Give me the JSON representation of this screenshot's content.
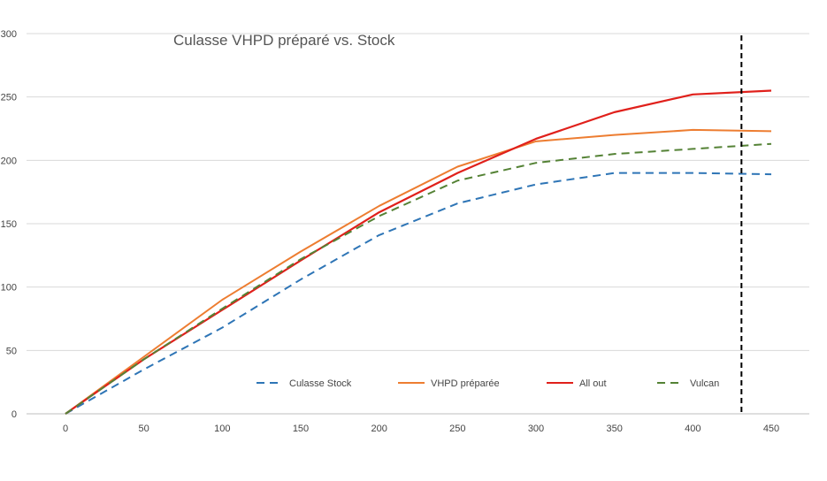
{
  "chart_data": {
    "type": "line",
    "title": "Culasse VHPD préparé vs. Stock",
    "xlabel": "",
    "ylabel": "",
    "x": [
      0,
      50,
      100,
      150,
      200,
      250,
      300,
      350,
      400,
      450
    ],
    "xlim": [
      0,
      450
    ],
    "ylim": [
      0,
      300
    ],
    "x_ticks": [
      "0",
      "50",
      "100",
      "150",
      "200",
      "250",
      "300",
      "350",
      "400",
      "450"
    ],
    "y_ticks": [
      "0",
      "50",
      "100",
      "150",
      "200",
      "250",
      "300"
    ],
    "grid": "horizontal",
    "legend_position": "bottom",
    "vertical_marker_x": 431,
    "series": [
      {
        "name": "Culasse Stock",
        "color": "#2E75B6",
        "style": "dashed",
        "values": [
          0,
          35,
          68,
          106,
          141,
          166,
          181,
          190,
          190,
          189
        ]
      },
      {
        "name": "VHPD préparée",
        "color": "#ED7D31",
        "style": "solid",
        "values": [
          0,
          45,
          90,
          128,
          164,
          195,
          215,
          220,
          224,
          223
        ]
      },
      {
        "name": "All out",
        "color": "#E0201B",
        "style": "solid",
        "values": [
          0,
          43,
          82,
          121,
          159,
          190,
          217,
          238,
          252,
          255
        ]
      },
      {
        "name": "Vulcan",
        "color": "#548235",
        "style": "dashed",
        "values": [
          0,
          43,
          83,
          122,
          156,
          184,
          198,
          205,
          209,
          213
        ]
      }
    ]
  }
}
